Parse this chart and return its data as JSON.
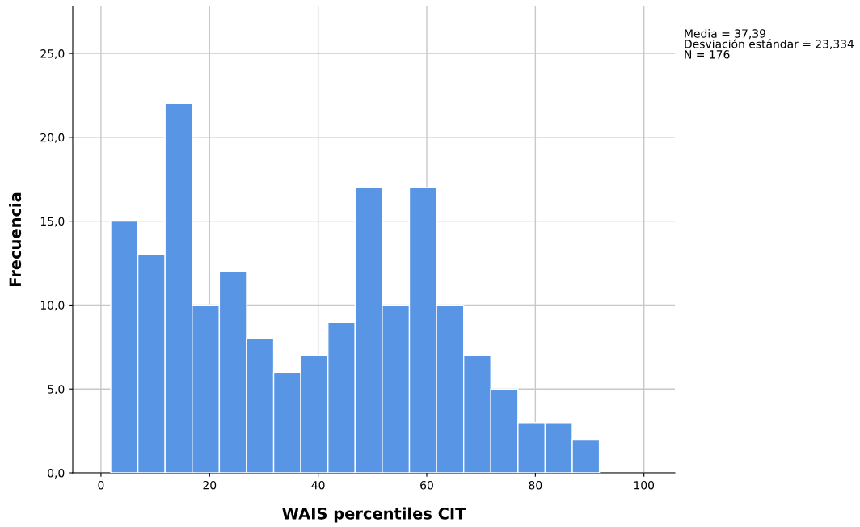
{
  "chart_data": {
    "type": "histogram",
    "xlabel": "WAIS percentiles CIT",
    "ylabel": "Frecuencia",
    "bins": [
      1.8,
      6.8,
      11.8,
      16.8,
      21.8,
      26.8,
      31.8,
      36.8,
      41.8,
      46.8,
      51.8,
      56.8,
      61.8,
      66.8,
      71.8,
      76.8,
      81.8,
      86.8,
      91.8
    ],
    "values": [
      15,
      13,
      22,
      10,
      12,
      8,
      6,
      7,
      9,
      17,
      10,
      17,
      10,
      7,
      5,
      3,
      3,
      2
    ],
    "color": "#5895e4",
    "xlim": [
      -5.2,
      105.7
    ],
    "xticks": [
      0,
      20,
      40,
      60,
      80,
      100
    ],
    "ylim": [
      0,
      27.8
    ],
    "yticks": [
      {
        "value": 0,
        "label": "0,0"
      },
      {
        "value": 5,
        "label": "5,0"
      },
      {
        "value": 10,
        "label": "10,0"
      },
      {
        "value": 15,
        "label": "15,0"
      },
      {
        "value": 20,
        "label": "20,0"
      },
      {
        "value": 25,
        "label": "25,0"
      }
    ],
    "grid": true,
    "annotations": [
      "Media = 37,39\nDesviación estándar = 23,334\nN = 176"
    ]
  }
}
